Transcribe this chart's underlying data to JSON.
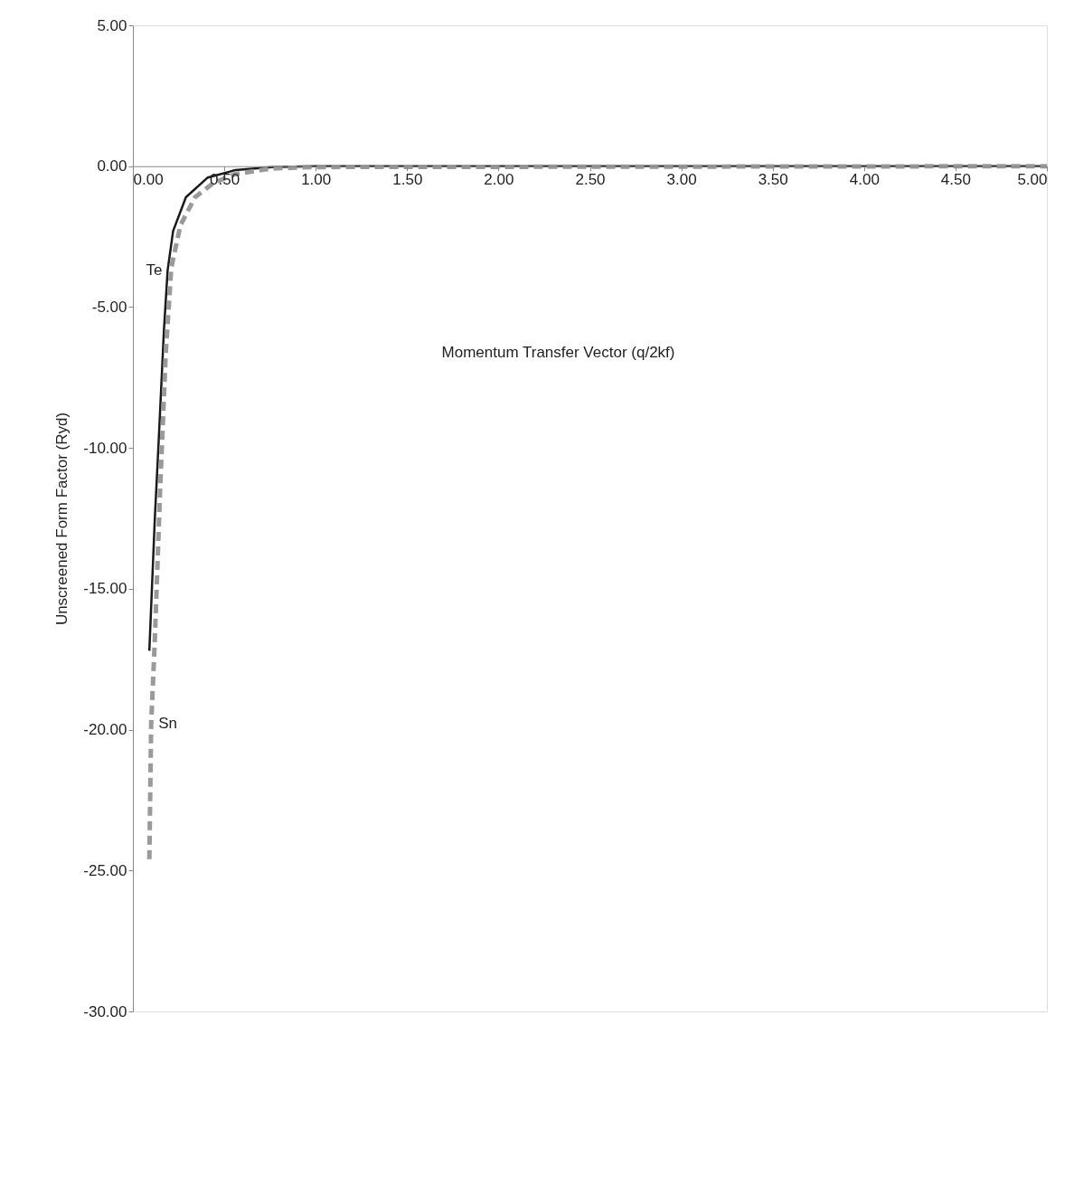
{
  "chart_data": {
    "type": "line",
    "xlabel": "Momentum Transfer Vector (q/2kf)",
    "ylabel": "Unscreened Form Factor (Ryd)",
    "xlim": [
      0,
      5
    ],
    "ylim": [
      -30,
      5
    ],
    "xticks": [
      {
        "value": 0,
        "label": "0.00"
      },
      {
        "value": 0.5,
        "label": "0.50"
      },
      {
        "value": 1,
        "label": "1.00"
      },
      {
        "value": 1.5,
        "label": "1.50"
      },
      {
        "value": 2,
        "label": "2.00"
      },
      {
        "value": 2.5,
        "label": "2.50"
      },
      {
        "value": 3,
        "label": "3.00"
      },
      {
        "value": 3.5,
        "label": "3.50"
      },
      {
        "value": 4,
        "label": "4.00"
      },
      {
        "value": 4.5,
        "label": "4.50"
      },
      {
        "value": 5,
        "label": "5.00"
      }
    ],
    "yticks": [
      {
        "value": 5,
        "label": "5.00"
      },
      {
        "value": 0,
        "label": "0.00"
      },
      {
        "value": -5,
        "label": "-5.00"
      },
      {
        "value": -10,
        "label": "-10.00"
      },
      {
        "value": -15,
        "label": "-15.00"
      },
      {
        "value": -20,
        "label": "-20.00"
      },
      {
        "value": -25,
        "label": "-25.00"
      },
      {
        "value": -30,
        "label": "-30.00"
      }
    ],
    "grid": false,
    "legend": false,
    "marker": "none",
    "series": [
      {
        "name": "Te",
        "color": "#1a1a1a",
        "line_style": "solid",
        "x": [
          0.09,
          0.12,
          0.14,
          0.17,
          0.19,
          0.22,
          0.29,
          0.41,
          0.56,
          0.76,
          1.0,
          5.0
        ],
        "values": [
          -17.2,
          -12.5,
          -9.9,
          -5.8,
          -3.7,
          -2.3,
          -1.1,
          -0.4,
          -0.14,
          -0.03,
          0,
          0
        ]
      },
      {
        "name": "Sn",
        "color": "#9a9a9a",
        "line_style": "dashed",
        "x": [
          0.09,
          0.1,
          0.12,
          0.15,
          0.18,
          0.21,
          0.26,
          0.34,
          0.44,
          0.56,
          0.76,
          1.0,
          5.0
        ],
        "values": [
          -24.6,
          -19.8,
          -16.8,
          -11.3,
          -6.6,
          -3.6,
          -2.1,
          -1.1,
          -0.6,
          -0.28,
          -0.08,
          -0.03,
          0
        ]
      }
    ]
  }
}
